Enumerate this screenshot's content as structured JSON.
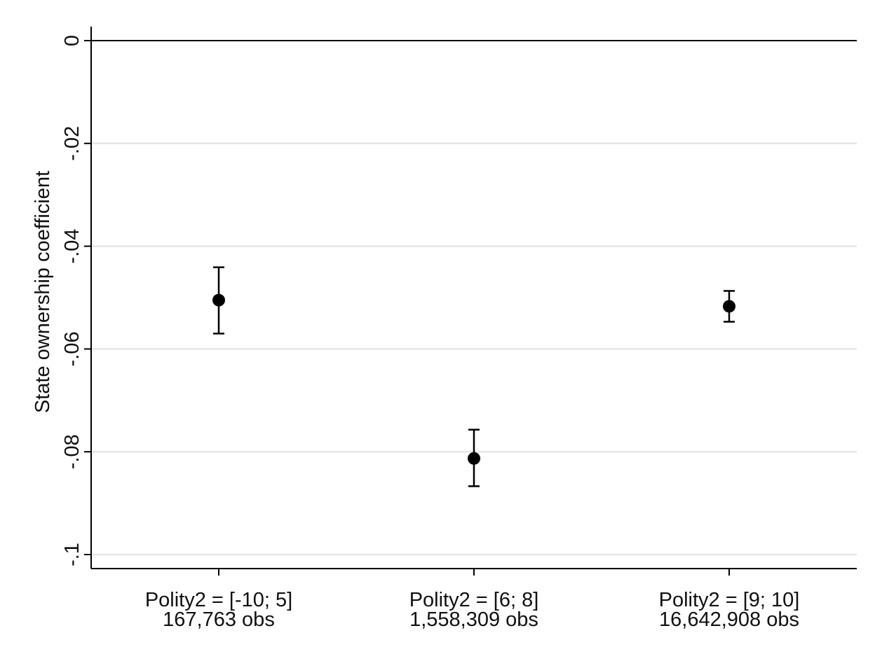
{
  "chart_data": {
    "type": "scatter",
    "title": "",
    "xlabel": "",
    "ylabel": "State ownership coefficient",
    "ylim": [
      -0.1,
      0
    ],
    "yticks": [
      {
        "value": 0,
        "label": "0"
      },
      {
        "value": -0.02,
        "label": "-.02"
      },
      {
        "value": -0.04,
        "label": "-.04"
      },
      {
        "value": -0.06,
        "label": "-.06"
      },
      {
        "value": -0.08,
        "label": "-.08"
      },
      {
        "value": -0.1,
        "label": "-.1"
      }
    ],
    "grid": true,
    "reference_line": 0,
    "categories": [
      {
        "label": "Polity2 = [-10; 5]",
        "sublabel": "167,763 obs"
      },
      {
        "label": "Polity2 = [6; 8]",
        "sublabel": "1,558,309 obs"
      },
      {
        "label": "Polity2 = [9; 10]",
        "sublabel": "16,642,908 obs"
      }
    ],
    "points": [
      {
        "y": -0.0505,
        "ci_low": -0.057,
        "ci_high": -0.0441
      },
      {
        "y": -0.0813,
        "ci_low": -0.0867,
        "ci_high": -0.0757
      },
      {
        "y": -0.0517,
        "ci_low": -0.0547,
        "ci_high": -0.0487
      }
    ],
    "colors": {
      "marker": "#000000",
      "grid": "#e6e6e6",
      "axis": "#000000"
    }
  }
}
